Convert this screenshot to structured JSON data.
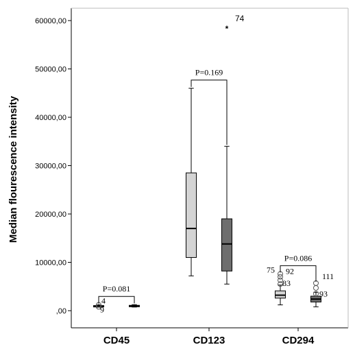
{
  "chart_data": {
    "type": "box",
    "ylabel": "Median flourescence intensity",
    "xlabel": "",
    "ylim": [
      0,
      62000
    ],
    "yticks": [
      0,
      10000,
      20000,
      30000,
      40000,
      50000,
      60000
    ],
    "ytick_labels": [
      ",00",
      "10000,00",
      "20000,00",
      "30000,00",
      "40000,00",
      "50000,00",
      "60000,00"
    ],
    "categories": [
      "CD45",
      "CD123",
      "CD294"
    ],
    "series_colors": [
      "#d4d4d4",
      "#6e6e6e"
    ],
    "groups": [
      {
        "category": "CD45",
        "p_value": "P=0.081",
        "boxes": [
          {
            "min": 700,
            "q1": 850,
            "median": 950,
            "q3": 1050,
            "max": 1200,
            "outliers": [
              {
                "y": 1200,
                "label": "4",
                "marker": "circle"
              },
              {
                "y": 800,
                "label": "9",
                "marker": "circle"
              }
            ]
          },
          {
            "min": 750,
            "q1": 850,
            "median": 1000,
            "q3": 1100,
            "max": 1250,
            "outliers": []
          }
        ]
      },
      {
        "category": "CD123",
        "p_value": "P=0.169",
        "boxes": [
          {
            "min": 7200,
            "q1": 11000,
            "median": 17000,
            "q3": 28500,
            "max": 46000,
            "outliers": []
          },
          {
            "min": 5500,
            "q1": 8200,
            "median": 13800,
            "q3": 19000,
            "max": 34000,
            "outliers": [
              {
                "y": 59000,
                "label": "74",
                "marker": "star"
              }
            ]
          }
        ]
      },
      {
        "category": "CD294",
        "p_value": "P=0.086",
        "boxes": [
          {
            "min": 1200,
            "q1": 2600,
            "median": 3200,
            "q3": 4100,
            "max": 5300,
            "outliers": [
              {
                "y": 7600,
                "label": "75",
                "marker": "circle"
              },
              {
                "y": 7000,
                "label": "92",
                "marker": "circle"
              },
              {
                "y": 6300,
                "label": "",
                "marker": "circle"
              },
              {
                "y": 5500,
                "label": "83",
                "marker": "circle"
              }
            ]
          },
          {
            "min": 800,
            "q1": 1800,
            "median": 2400,
            "q3": 3000,
            "max": 3800,
            "outliers": [
              {
                "y": 5700,
                "label": "111",
                "marker": "circle"
              },
              {
                "y": 4700,
                "label": "",
                "marker": "circle"
              },
              {
                "y": 3500,
                "label": "93",
                "marker": "circle"
              }
            ]
          }
        ]
      }
    ]
  }
}
